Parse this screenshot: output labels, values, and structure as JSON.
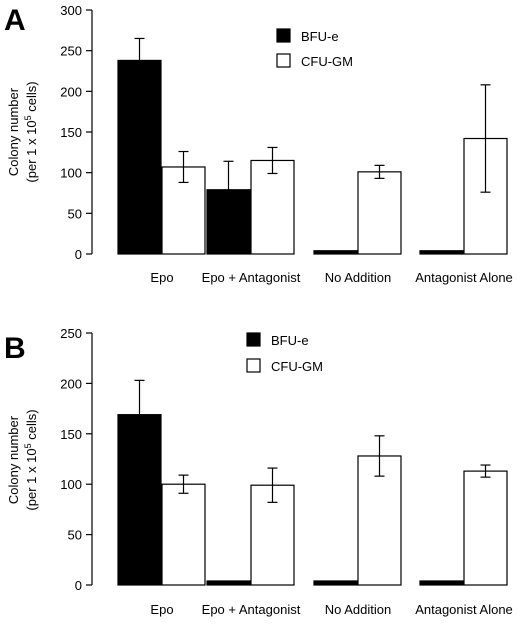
{
  "chart_data": [
    {
      "panel": "A",
      "type": "bar",
      "ylabel_line1": "Colony number",
      "ylabel_line2_pre": "(per 1 x 10",
      "ylabel_line2_sup": "5",
      "ylabel_line2_post": " cells)",
      "ylim": [
        0,
        300
      ],
      "yticks": [
        0,
        50,
        100,
        150,
        200,
        250,
        300
      ],
      "categories": [
        "Epo",
        "Epo + Antagonist",
        "No Addition",
        "Antagonist Alone"
      ],
      "legend_position": "top-right",
      "series": [
        {
          "name": "BFU-e",
          "fill": "#000000",
          "values": [
            238,
            79,
            4,
            4
          ],
          "errors": [
            27,
            35,
            0,
            0
          ]
        },
        {
          "name": "CFU-GM",
          "fill": "#ffffff",
          "values": [
            107,
            115,
            101,
            142
          ],
          "errors": [
            19,
            16,
            8,
            66
          ]
        }
      ]
    },
    {
      "panel": "B",
      "type": "bar",
      "ylabel_line1": "Colony number",
      "ylabel_line2_pre": "(per 1 x 10",
      "ylabel_line2_sup": "5",
      "ylabel_line2_post": " cells)",
      "ylim": [
        0,
        250
      ],
      "yticks": [
        0,
        50,
        100,
        150,
        200,
        250
      ],
      "categories": [
        "Epo",
        "Epo + Antagonist",
        "No Addition",
        "Antagonist Alone"
      ],
      "legend_position": "top-right",
      "series": [
        {
          "name": "BFU-e",
          "fill": "#000000",
          "values": [
            169,
            4,
            4,
            4
          ],
          "errors": [
            34,
            0,
            0,
            0
          ]
        },
        {
          "name": "CFU-GM",
          "fill": "#ffffff",
          "values": [
            100,
            99,
            128,
            113
          ],
          "errors": [
            9,
            17,
            20,
            6
          ]
        }
      ]
    }
  ]
}
